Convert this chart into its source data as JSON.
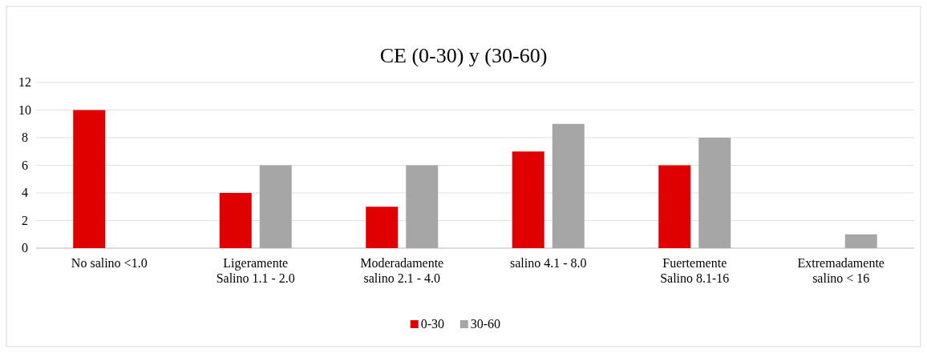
{
  "chart_data": {
    "type": "bar",
    "title": "CE (0-30) y (30-60)",
    "categories": [
      "No salino <1.0",
      "Ligeramente Salino 1.1 - 2.0",
      "Moderadamente salino 2.1 - 4.0",
      "salino 4.1 - 8.0",
      "Fuertemente Salino 8.1-16",
      "Extremadamente salino < 16"
    ],
    "series": [
      {
        "name": "0-30",
        "color": "#e00000",
        "values": [
          10,
          4,
          3,
          7,
          6,
          0
        ]
      },
      {
        "name": "30-60",
        "color": "#a6a6a6",
        "values": [
          0,
          6,
          6,
          9,
          8,
          1
        ]
      }
    ],
    "ylim": [
      0,
      12
    ],
    "yticks": [
      0,
      2,
      4,
      6,
      8,
      10,
      12
    ],
    "grid": "y",
    "legend": "bottom"
  }
}
